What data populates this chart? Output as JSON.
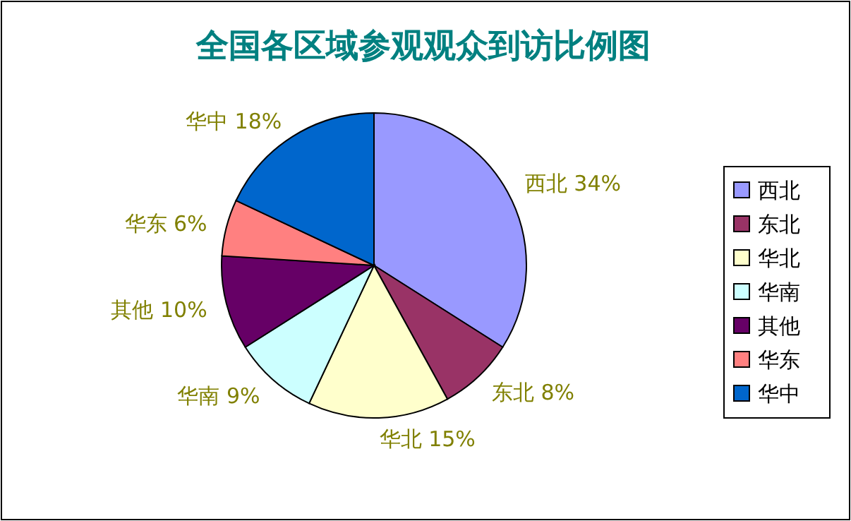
{
  "chart_data": {
    "type": "pie",
    "title": "全国各区域参观观众到访比例图",
    "categories": [
      "西北",
      "东北",
      "华北",
      "华南",
      "其他",
      "华东",
      "华中"
    ],
    "values": [
      34,
      8,
      15,
      9,
      10,
      6,
      18
    ],
    "value_labels": [
      "34%",
      "8%",
      "15%",
      "9%",
      "10%",
      "6%",
      "18%"
    ],
    "colors": [
      "#9999ff",
      "#993366",
      "#ffffcc",
      "#ccffff",
      "#660066",
      "#ff8080",
      "#0066cc"
    ],
    "legend": "right"
  }
}
